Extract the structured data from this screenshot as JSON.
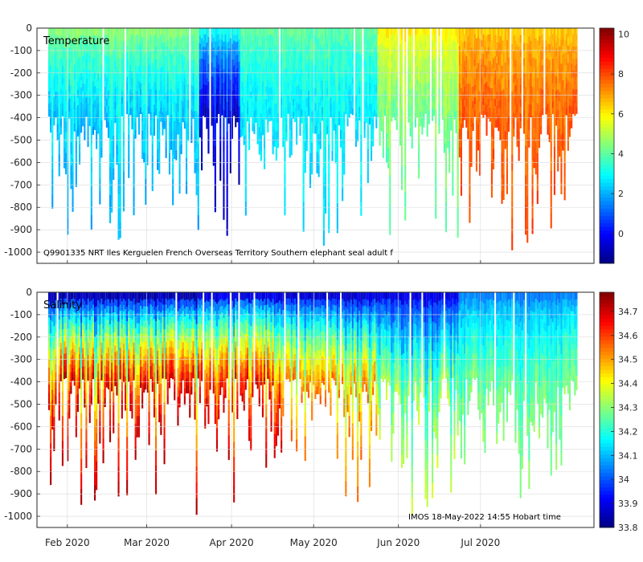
{
  "chart_data": [
    {
      "type": "heatmap",
      "title": "Temperature",
      "annotation": "Q9901335 NRT Iles Kerguelen French Overseas Territory Southern elephant seal adult f",
      "xlabel": "",
      "ylabel": "",
      "x_tick_labels": [
        "Feb 2020",
        "Mar 2020",
        "Apr 2020",
        "May 2020",
        "Jun 2020",
        "Jul 2020"
      ],
      "x_range_days": [
        0,
        193
      ],
      "y_ticks": [
        0,
        -100,
        -200,
        -300,
        -400,
        -500,
        -600,
        -700,
        -800,
        -900,
        -1000
      ],
      "ylim": [
        -1050,
        0
      ],
      "colorbar": {
        "min": -1.5,
        "max": 10.3,
        "ticks": [
          0,
          2,
          4,
          6,
          8,
          10
        ]
      },
      "colormap": "jet",
      "grid": true,
      "phases": [
        {
          "start_day": 0,
          "end_day": 55,
          "surface_value": 4.5,
          "deep_value": 2.0
        },
        {
          "start_day": 55,
          "end_day": 70,
          "surface_value": 3.0,
          "deep_value": -1.0
        },
        {
          "start_day": 70,
          "end_day": 120,
          "surface_value": 4.0,
          "deep_value": 2.5
        },
        {
          "start_day": 120,
          "end_day": 150,
          "surface_value": 6.0,
          "deep_value": 4.0
        },
        {
          "start_day": 150,
          "end_day": 193,
          "surface_value": 6.5,
          "deep_value": 8.0
        }
      ]
    },
    {
      "type": "heatmap",
      "title": "Salinity",
      "annotation": "IMOS 18-May-2022 14:55 Hobart time",
      "xlabel": "",
      "ylabel": "",
      "x_tick_labels": [
        "Feb 2020",
        "Mar 2020",
        "Apr 2020",
        "May 2020",
        "Jun 2020",
        "Jul 2020"
      ],
      "x_range_days": [
        0,
        193
      ],
      "y_ticks": [
        0,
        -100,
        -200,
        -300,
        -400,
        -500,
        -600,
        -700,
        -800,
        -900,
        -1000
      ],
      "ylim": [
        -1050,
        0
      ],
      "colorbar": {
        "min": 33.8,
        "max": 34.78,
        "ticks": [
          33.8,
          33.9,
          34,
          34.1,
          34.2,
          34.3,
          34.4,
          34.5,
          34.6,
          34.7
        ]
      },
      "colormap": "jet",
      "grid": true,
      "phases": [
        {
          "start_day": 0,
          "end_day": 55,
          "surface_value": 33.85,
          "deep_value": 34.72
        },
        {
          "start_day": 55,
          "end_day": 85,
          "surface_value": 33.9,
          "deep_value": 34.7
        },
        {
          "start_day": 85,
          "end_day": 120,
          "surface_value": 33.88,
          "deep_value": 34.55
        },
        {
          "start_day": 120,
          "end_day": 150,
          "surface_value": 33.9,
          "deep_value": 34.35
        },
        {
          "start_day": 150,
          "end_day": 193,
          "surface_value": 34.05,
          "deep_value": 34.3
        }
      ]
    }
  ]
}
